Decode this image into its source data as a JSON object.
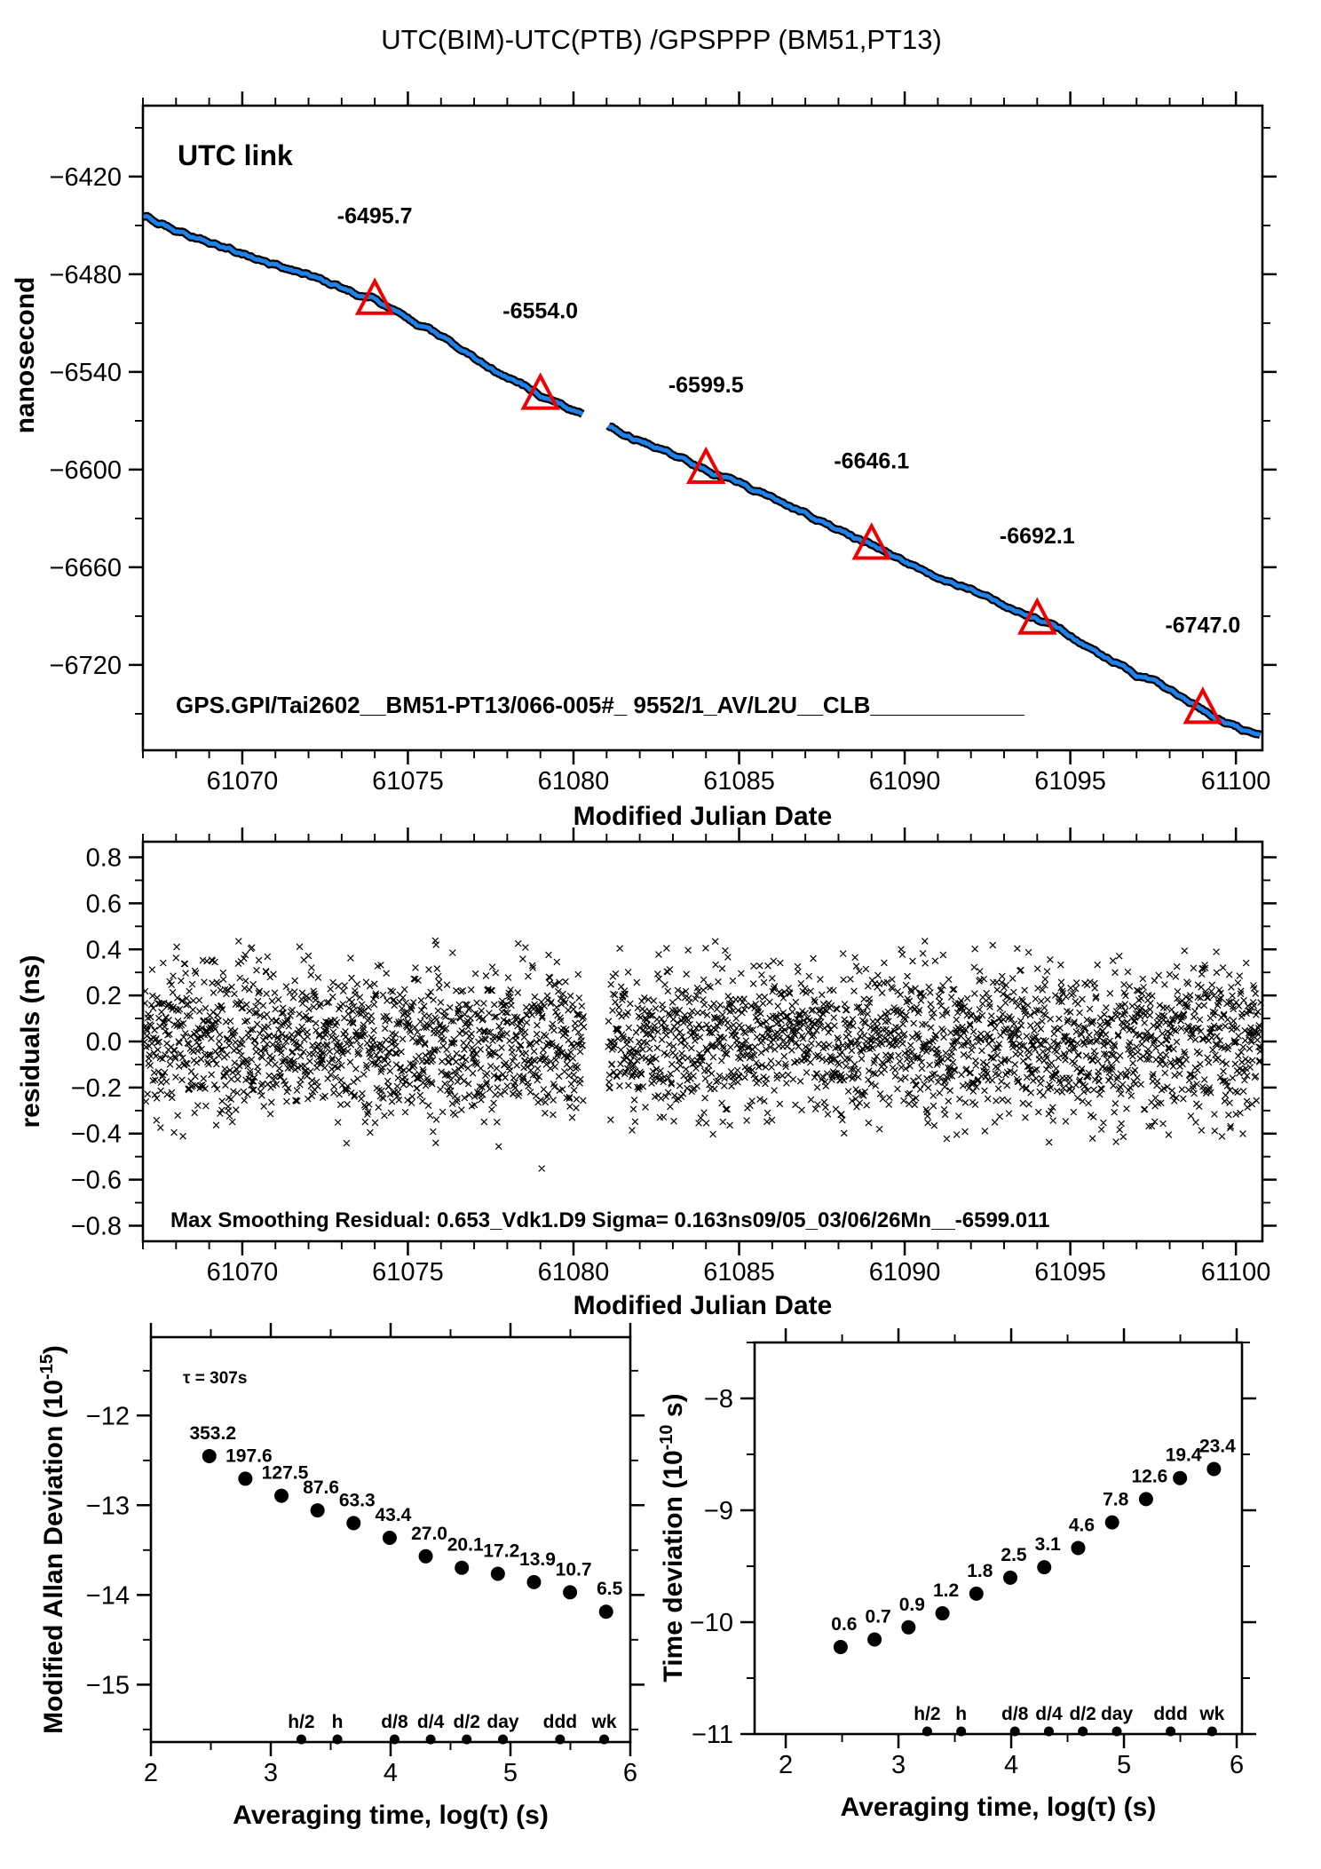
{
  "title": "UTC(BIM)-UTC(PTB)  /GPSPPP  (BM51,PT13)",
  "colors": {
    "line_blue": "#1e82ec",
    "marker_red": "#ee0000",
    "utc_link_olive": "#6b8e23",
    "ink": "#000000",
    "background": "#ffffff"
  },
  "chart_data": [
    {
      "id": "utc-link-plot",
      "type": "line",
      "corner_label": "UTC link",
      "ylabel": "nanosecond",
      "xlabel": "Modified Julian Date",
      "file_annotation": "GPS.GPI/Tai2602__BM51-PT13/066-005#_  9552/1_AV/L2U__CLB____________",
      "xlim": [
        61067.0,
        61100.8
      ],
      "ylim": [
        -6772.4,
        -6376.4
      ],
      "grid": false,
      "xticks_major": [
        61070,
        61075,
        61080,
        61085,
        61090,
        61095,
        61100
      ],
      "xtick_labels": [
        "61070",
        "61075",
        "61080",
        "61085",
        "61090",
        "61095",
        "61100"
      ],
      "xtick_minor_step": 1,
      "yticks_major": [
        -6420,
        -6480,
        -6540,
        -6600,
        -6660,
        -6720
      ],
      "ytick_labels": [
        "−6420",
        "−6480",
        "−6540",
        "−6600",
        "−6660",
        "−6720"
      ],
      "ytick_minor_step": 30,
      "data_gap_mjd": [
        61080.32,
        61081.05
      ],
      "line_anchors": {
        "x": [
          61067.0,
          61074,
          61079,
          61080.32,
          61081.05,
          61084,
          61089,
          61094,
          61099,
          61100.8
        ],
        "y": [
          -6445,
          -6495.7,
          -6554.0,
          -6566,
          -6573,
          -6599.5,
          -6646.1,
          -6692.1,
          -6747.0,
          -6765
        ]
      },
      "calibration_points": [
        {
          "mjd": 61074,
          "value": -6495.7,
          "label": "-6495.7"
        },
        {
          "mjd": 61079,
          "value": -6554.0,
          "label": "-6554.0"
        },
        {
          "mjd": 61084,
          "value": -6599.5,
          "label": "-6599.5"
        },
        {
          "mjd": 61089,
          "value": -6646.1,
          "label": "-6646.1"
        },
        {
          "mjd": 61094,
          "value": -6692.1,
          "label": "-6692.1"
        },
        {
          "mjd": 61099,
          "value": -6747.0,
          "label": "-6747.0"
        }
      ]
    },
    {
      "id": "residuals-plot",
      "type": "scatter",
      "marker": "x",
      "ylabel": "residuals (ns)",
      "xlabel": "Modified Julian Date",
      "annotation": "Max Smoothing Residual: 0.653_Vdk1.D9  Sigma= 0.163ns09/05_03/06/26Mn__-6599.011",
      "xlim": [
        61067.0,
        61100.8
      ],
      "ylim": [
        -0.8675,
        0.8675
      ],
      "grid": false,
      "xticks_major": [
        61070,
        61075,
        61080,
        61085,
        61090,
        61095,
        61100
      ],
      "xtick_labels": [
        "61070",
        "61075",
        "61080",
        "61085",
        "61090",
        "61095",
        "61100"
      ],
      "xtick_minor_step": 1,
      "yticks_major": [
        0.8,
        0.6,
        0.4,
        0.2,
        0.0,
        -0.2,
        -0.4,
        -0.6,
        -0.8
      ],
      "ytick_labels": [
        "0.8",
        "0.6",
        "0.4",
        "0.2",
        "0.0",
        "−0.2",
        "−0.4",
        "−0.6",
        "−0.8"
      ],
      "ytick_minor_step": 0.1,
      "data_gap_mjd": [
        61080.32,
        61081.05
      ],
      "sigma_ns": 0.163,
      "point_step_days": 0.01
    },
    {
      "id": "mdev-plot",
      "type": "scatter",
      "ylabel_parts": [
        {
          "t": "Modified Allan Deviation (10"
        },
        {
          "sup": "-15"
        },
        {
          "t": ")"
        }
      ],
      "xlabel": "Averaging time, log(τ) (s)",
      "tau_note": "τ = 307s",
      "xlim": [
        2,
        6
      ],
      "ylim": [
        -15.64,
        -11.126
      ],
      "grid": false,
      "xticks_major": [
        2,
        3,
        4,
        5,
        6
      ],
      "xtick_labels": [
        "2",
        "3",
        "4",
        "5",
        "6"
      ],
      "xtick_minor_step": 0.5,
      "yticks_major": [
        -12,
        -13,
        -14,
        -15
      ],
      "ytick_labels": [
        "−12",
        "−13",
        "−14",
        "−15"
      ],
      "ytick_minor_step": 0.5,
      "x": [
        2.487,
        2.788,
        3.089,
        3.39,
        3.691,
        3.992,
        4.293,
        4.594,
        4.895,
        5.196,
        5.497,
        5.798
      ],
      "y": [
        -12.452,
        -12.704,
        -12.894,
        -13.057,
        -13.199,
        -13.363,
        -13.569,
        -13.697,
        -13.764,
        -13.857,
        -13.971,
        -14.187
      ],
      "value_labels": [
        "353.2",
        "197.6",
        "127.5",
        "87.6",
        "63.3",
        "43.4",
        "27.0",
        "20.1",
        "17.2",
        "13.9",
        "10.7",
        "6.5"
      ],
      "axis_markers": [
        {
          "label": "h/2",
          "log_tau": 3.255
        },
        {
          "label": "h",
          "log_tau": 3.556
        },
        {
          "label": "d/8",
          "log_tau": 4.033
        },
        {
          "label": "d/4",
          "log_tau": 4.334
        },
        {
          "label": "d/2",
          "log_tau": 4.635
        },
        {
          "label": "day",
          "log_tau": 4.937
        },
        {
          "label": "ddd",
          "log_tau": 5.414
        },
        {
          "label": "wk",
          "log_tau": 5.782
        }
      ]
    },
    {
      "id": "tdev-plot",
      "type": "scatter",
      "ylabel_parts": [
        {
          "t": "Time deviation (10"
        },
        {
          "sup": "-10"
        },
        {
          "t": " s)"
        }
      ],
      "xlabel": "Averaging time, log(τ) (s)",
      "xlim": [
        1.724,
        6.047
      ],
      "ylim": [
        -11.0,
        -7.5
      ],
      "grid": false,
      "xticks_major": [
        2,
        3,
        4,
        5,
        6
      ],
      "xtick_labels": [
        "2",
        "3",
        "4",
        "5",
        "6"
      ],
      "xtick_minor_step": 0.5,
      "yticks_major": [
        -8,
        -9,
        -10,
        -11
      ],
      "ytick_labels": [
        "−8",
        "−9",
        "−10",
        "−11"
      ],
      "ytick_minor_step": 0.5,
      "x": [
        2.487,
        2.788,
        3.089,
        3.39,
        3.691,
        3.992,
        4.293,
        4.594,
        4.895,
        5.196,
        5.497,
        5.798
      ],
      "y": [
        -10.222,
        -10.155,
        -10.046,
        -9.921,
        -9.745,
        -9.602,
        -9.509,
        -9.337,
        -9.108,
        -8.9,
        -8.712,
        -8.631
      ],
      "value_labels": [
        "0.6",
        "0.7",
        "0.9",
        "1.2",
        "1.8",
        "2.5",
        "3.1",
        "4.6",
        "7.8",
        "12.6",
        "19.4",
        "23.4"
      ],
      "axis_markers": [
        {
          "label": "h/2",
          "log_tau": 3.255
        },
        {
          "label": "h",
          "log_tau": 3.556
        },
        {
          "label": "d/8",
          "log_tau": 4.033
        },
        {
          "label": "d/4",
          "log_tau": 4.334
        },
        {
          "label": "d/2",
          "log_tau": 4.635
        },
        {
          "label": "day",
          "log_tau": 4.937
        },
        {
          "label": "ddd",
          "log_tau": 5.414
        },
        {
          "label": "wk",
          "log_tau": 5.782
        }
      ]
    }
  ]
}
